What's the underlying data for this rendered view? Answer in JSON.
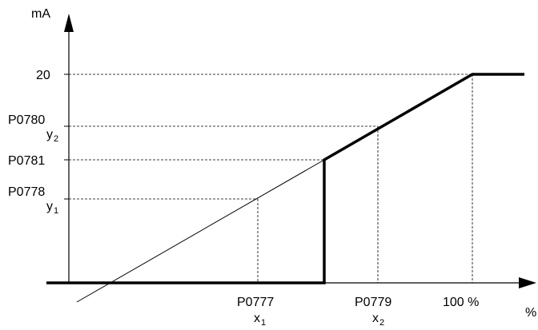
{
  "axes": {
    "y_unit": "mA",
    "x_unit": "%"
  },
  "y_labels": {
    "y20": "20",
    "p0780": "P0780",
    "y2": "y",
    "y2_sub": "2",
    "p0781": "P0781",
    "p0778": "P0778",
    "y1": "y",
    "y1_sub": "1"
  },
  "x_labels": {
    "p0777": "P0777",
    "x1": "x",
    "x1_sub": "1",
    "p0779": "P0779",
    "x2": "x",
    "x2_sub": "2",
    "x100": "100 %"
  },
  "colors": {
    "line": "#000000",
    "background": "#ffffff"
  }
}
